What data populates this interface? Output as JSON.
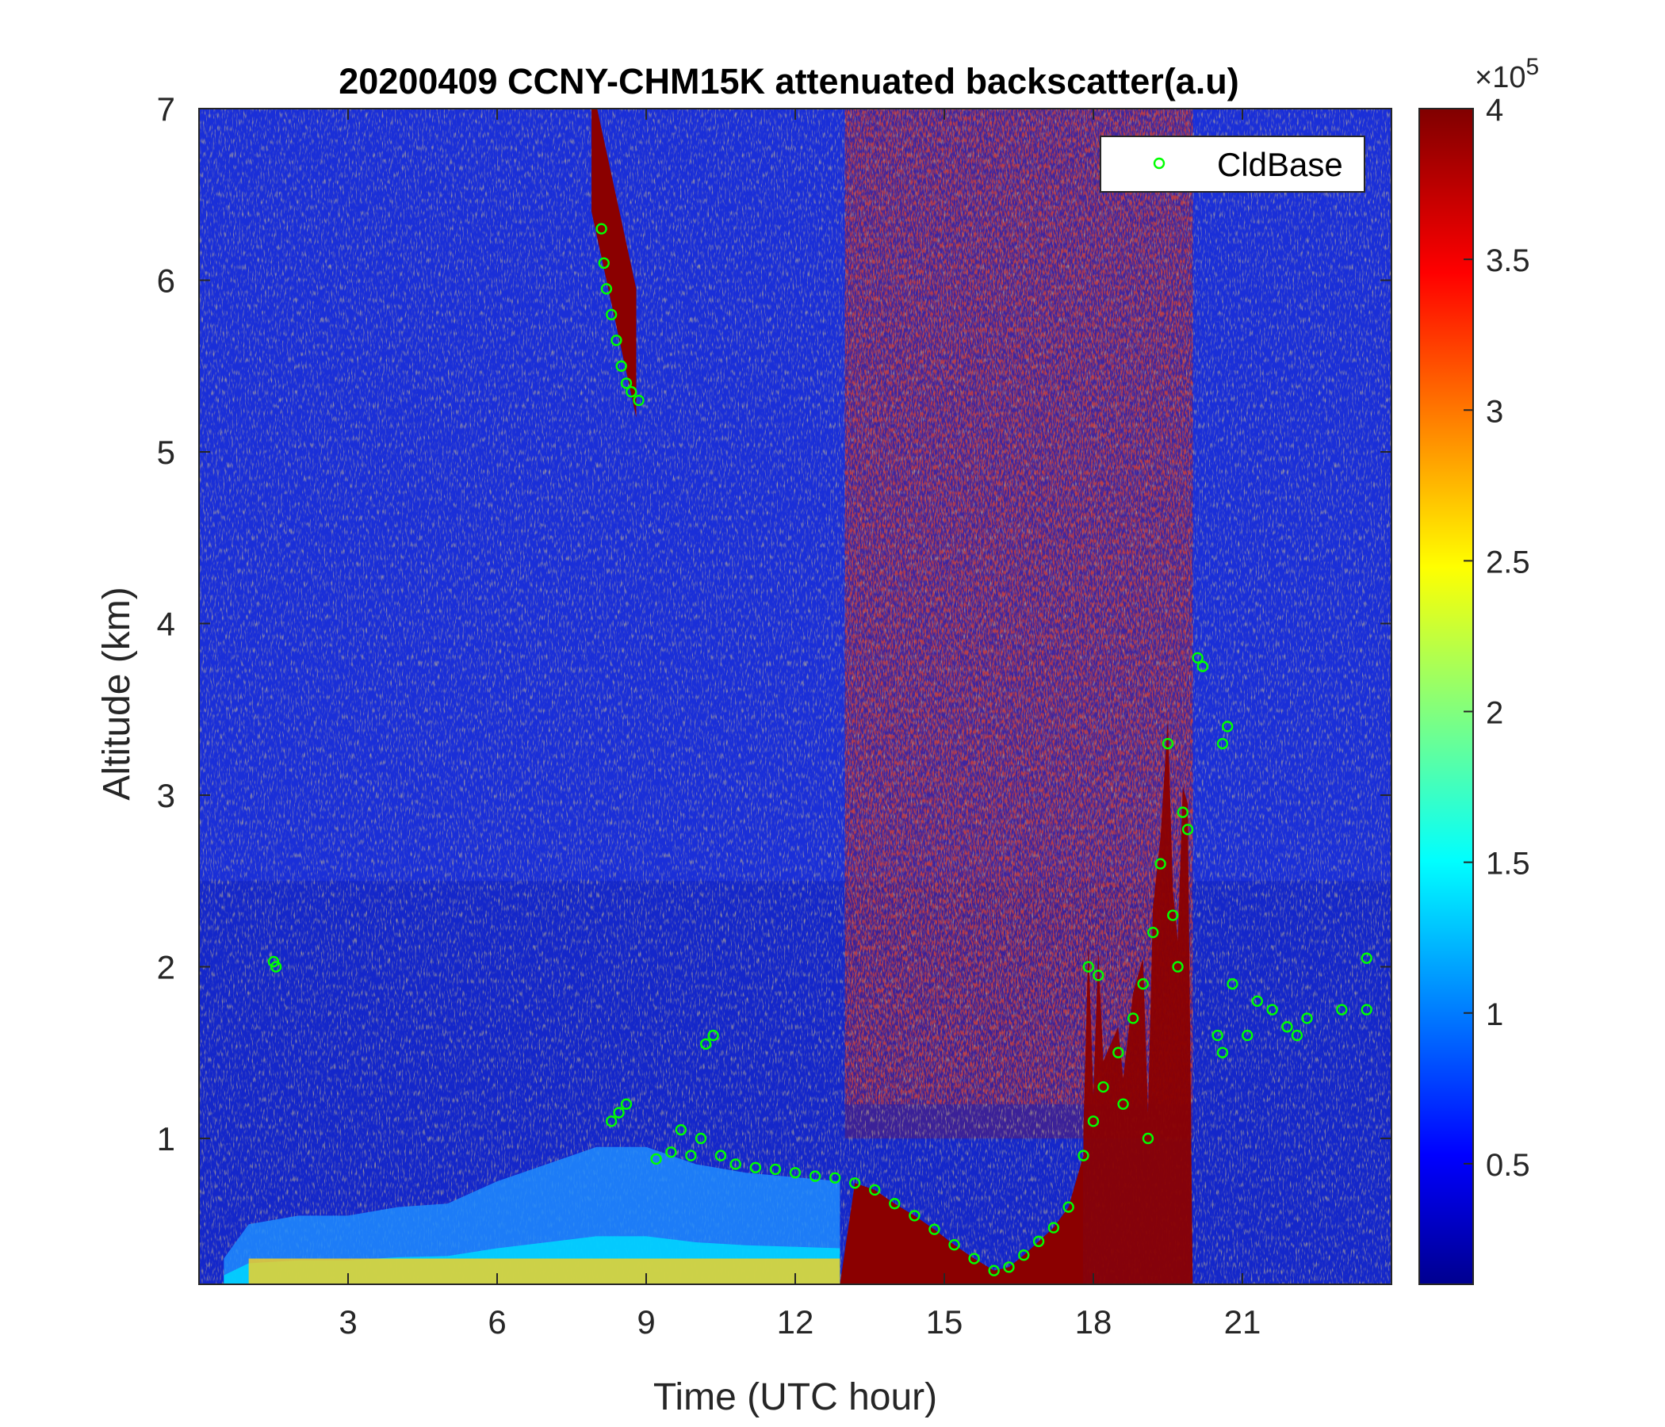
{
  "chart_data": {
    "type": "heatmap",
    "title": "20200409 CCNY-CHM15K attenuated backscatter(a.u)",
    "xlabel": "Time (UTC hour)",
    "ylabel": "Altitude (km)",
    "xlim": [
      0,
      24
    ],
    "ylim": [
      0.15,
      7
    ],
    "x_ticks": [
      3,
      6,
      9,
      12,
      15,
      18,
      21
    ],
    "y_ticks": [
      1,
      2,
      3,
      4,
      5,
      6,
      7
    ],
    "colormap": "jet",
    "colorbar": {
      "min": 0.1,
      "max": 4,
      "ticks": [
        0.5,
        1,
        1.5,
        2,
        2.5,
        3,
        3.5,
        4
      ],
      "exponent_label": "×10",
      "exponent": "5"
    },
    "legend": {
      "position": "top-right",
      "entries": [
        "CldBase"
      ],
      "marker_color": "#00ff00"
    },
    "features": {
      "surface_aerosol_top_km": [
        [
          0.5,
          0.3
        ],
        [
          1,
          0.5
        ],
        [
          2,
          0.55
        ],
        [
          3,
          0.55
        ],
        [
          4,
          0.6
        ],
        [
          5,
          0.62
        ],
        [
          6,
          0.75
        ],
        [
          7,
          0.85
        ],
        [
          8,
          0.95
        ],
        [
          9,
          0.95
        ],
        [
          10,
          0.85
        ],
        [
          11,
          0.8
        ],
        [
          12.9,
          0.75
        ]
      ],
      "high_cirrus_segments": [
        {
          "x_start": 7.9,
          "x_end": 8.8,
          "bottom_start": 6.4,
          "bottom_end": 5.2,
          "depth": 0.75
        }
      ],
      "high_noise_region_hours": [
        13,
        20
      ]
    },
    "series": [
      {
        "name": "CldBase",
        "points": [
          [
            1.5,
            2.03
          ],
          [
            1.55,
            2.0
          ],
          [
            8.1,
            6.3
          ],
          [
            8.15,
            6.1
          ],
          [
            8.2,
            5.95
          ],
          [
            8.3,
            5.8
          ],
          [
            8.4,
            5.65
          ],
          [
            8.5,
            5.5
          ],
          [
            8.6,
            5.4
          ],
          [
            8.7,
            5.35
          ],
          [
            8.85,
            5.3
          ],
          [
            8.3,
            1.1
          ],
          [
            8.45,
            1.15
          ],
          [
            8.6,
            1.2
          ],
          [
            9.2,
            0.88
          ],
          [
            9.5,
            0.92
          ],
          [
            9.7,
            1.05
          ],
          [
            9.9,
            0.9
          ],
          [
            10.1,
            1.0
          ],
          [
            10.2,
            1.55
          ],
          [
            10.35,
            1.6
          ],
          [
            10.5,
            0.9
          ],
          [
            10.8,
            0.85
          ],
          [
            11.2,
            0.83
          ],
          [
            11.6,
            0.82
          ],
          [
            12.0,
            0.8
          ],
          [
            12.4,
            0.78
          ],
          [
            12.8,
            0.77
          ],
          [
            13.2,
            0.74
          ],
          [
            13.6,
            0.7
          ],
          [
            14.0,
            0.62
          ],
          [
            14.4,
            0.55
          ],
          [
            14.8,
            0.47
          ],
          [
            15.2,
            0.38
          ],
          [
            15.6,
            0.3
          ],
          [
            16.0,
            0.23
          ],
          [
            16.3,
            0.25
          ],
          [
            16.6,
            0.32
          ],
          [
            16.9,
            0.4
          ],
          [
            17.2,
            0.48
          ],
          [
            17.5,
            0.6
          ],
          [
            17.8,
            0.9
          ],
          [
            18.0,
            1.1
          ],
          [
            18.2,
            1.3
          ],
          [
            18.5,
            1.5
          ],
          [
            18.8,
            1.7
          ],
          [
            19.0,
            1.9
          ],
          [
            19.2,
            2.2
          ],
          [
            19.35,
            2.6
          ],
          [
            19.5,
            3.3
          ],
          [
            19.8,
            2.9
          ],
          [
            19.9,
            2.8
          ],
          [
            20.1,
            3.8
          ],
          [
            20.2,
            3.75
          ],
          [
            17.9,
            2.0
          ],
          [
            18.1,
            1.95
          ],
          [
            18.6,
            1.2
          ],
          [
            19.1,
            1.0
          ],
          [
            19.6,
            2.3
          ],
          [
            19.7,
            2.0
          ],
          [
            20.5,
            1.6
          ],
          [
            20.6,
            1.5
          ],
          [
            20.6,
            3.3
          ],
          [
            20.7,
            3.4
          ],
          [
            20.8,
            1.9
          ],
          [
            21.1,
            1.6
          ],
          [
            21.3,
            1.8
          ],
          [
            21.6,
            1.75
          ],
          [
            21.9,
            1.65
          ],
          [
            22.1,
            1.6
          ],
          [
            22.3,
            1.7
          ],
          [
            23.0,
            1.75
          ],
          [
            23.5,
            2.05
          ],
          [
            23.5,
            1.75
          ]
        ]
      }
    ]
  }
}
